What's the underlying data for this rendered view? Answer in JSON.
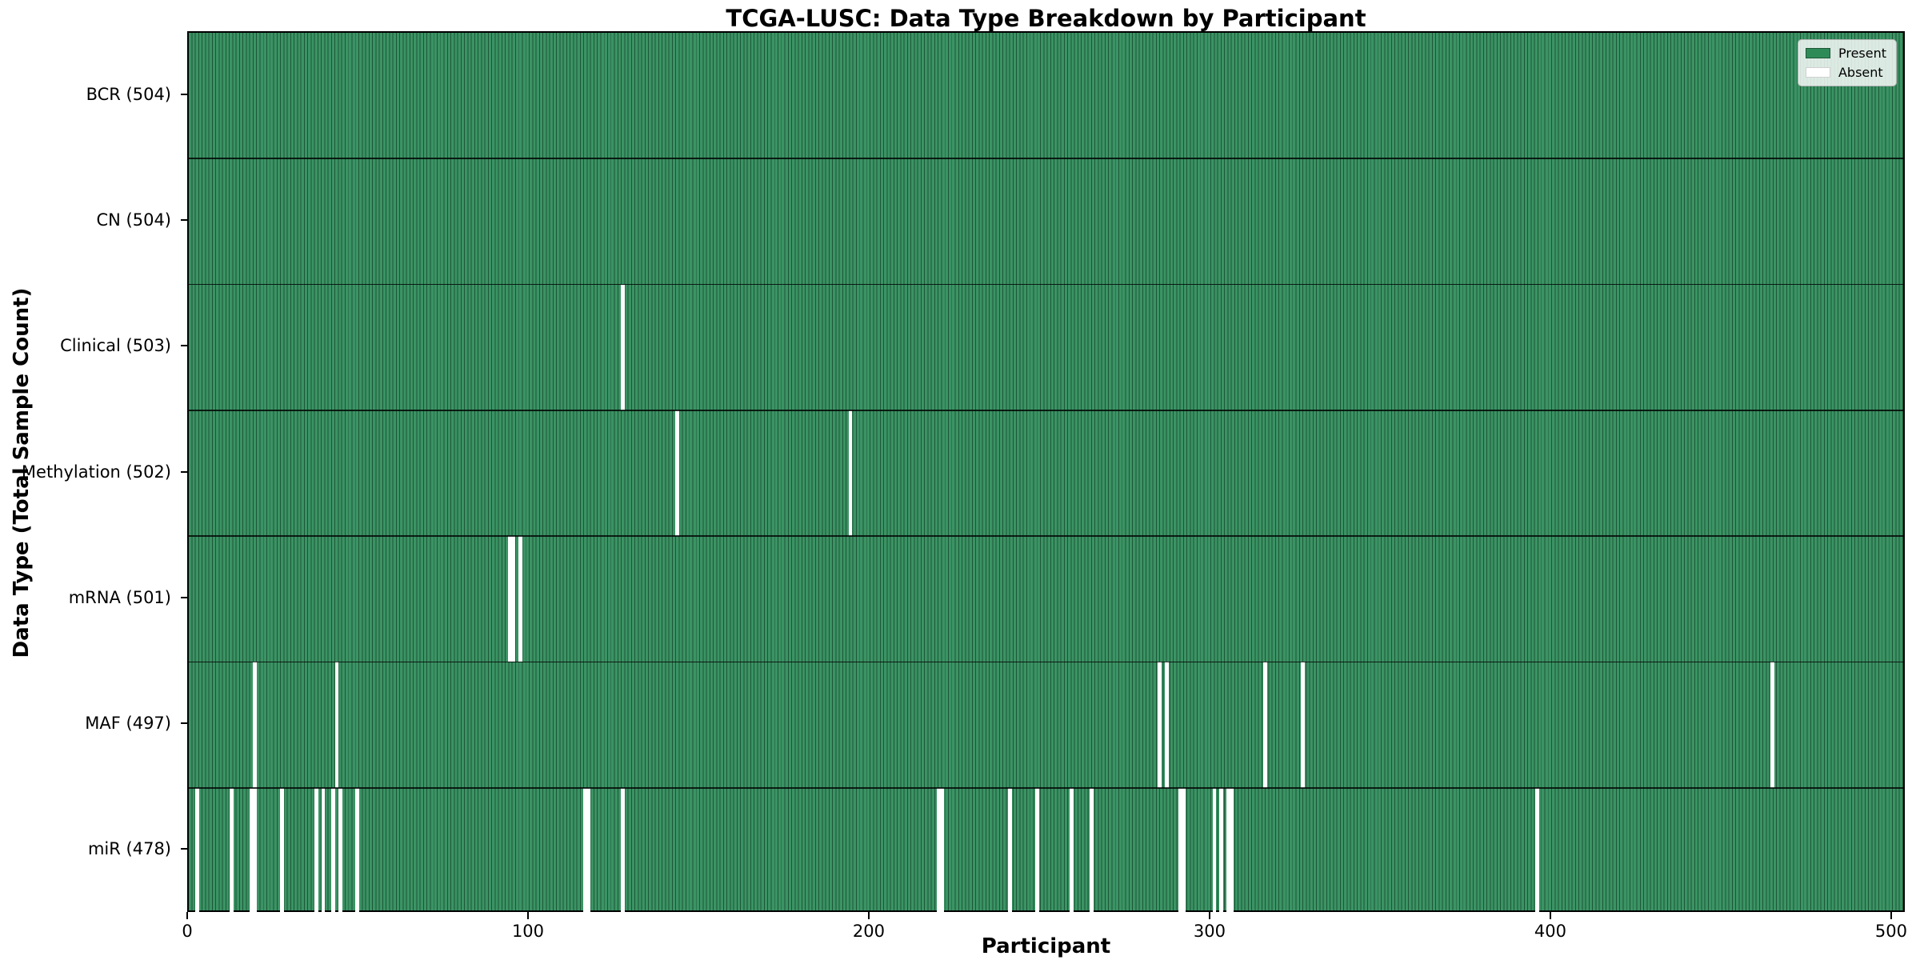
{
  "chart_data": {
    "type": "heatmap",
    "title": "TCGA-LUSC: Data Type Breakdown by Participant",
    "xlabel": "Participant",
    "ylabel": "Data Type (Total Sample Count)",
    "x_ticks": [
      0,
      100,
      200,
      300,
      400,
      500
    ],
    "x_range": [
      0,
      504
    ],
    "n_participants": 504,
    "cell_states": [
      "Present",
      "Absent"
    ],
    "rows": [
      {
        "label": "BCR (504)",
        "data_type": "BCR",
        "total_sample_count": 504,
        "absent_participants": []
      },
      {
        "label": "CN (504)",
        "data_type": "CN",
        "total_sample_count": 504,
        "absent_participants": []
      },
      {
        "label": "Clinical (503)",
        "data_type": "Clinical",
        "total_sample_count": 503,
        "absent_participants": [
          128
        ]
      },
      {
        "label": "Methylation (502)",
        "data_type": "Methylation",
        "total_sample_count": 502,
        "absent_participants": [
          144,
          195
        ]
      },
      {
        "label": "mRNA (501)",
        "data_type": "mRNA",
        "total_sample_count": 501,
        "absent_participants": [
          95,
          96,
          98
        ]
      },
      {
        "label": "MAF (497)",
        "data_type": "MAF",
        "total_sample_count": 497,
        "absent_participants": [
          20,
          44,
          286,
          288,
          317,
          328,
          466
        ]
      },
      {
        "label": "miR (478)",
        "data_type": "miR",
        "total_sample_count": 478,
        "absent_participants": [
          3,
          13,
          19,
          20,
          28,
          38,
          40,
          43,
          45,
          50,
          117,
          118,
          128,
          221,
          222,
          242,
          250,
          260,
          266,
          292,
          293,
          302,
          304,
          306,
          307,
          397
        ]
      }
    ],
    "legend": {
      "items": [
        {
          "label": "Present",
          "color": "#2e8b57"
        },
        {
          "label": "Absent",
          "color": "#ffffff"
        }
      ],
      "position": "upper right"
    },
    "colors": {
      "present_fill": "#2e8b57",
      "present_edge": "#1e5637",
      "absent_fill": "#ffffff",
      "row_divider": "#000000"
    },
    "grid": false
  }
}
